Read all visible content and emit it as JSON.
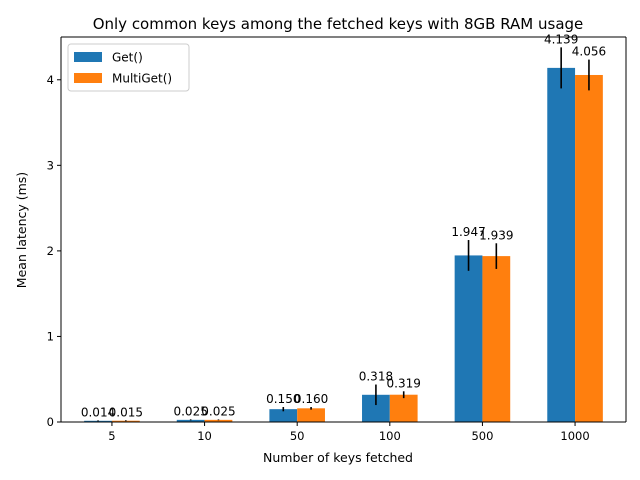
{
  "chart_data": {
    "type": "bar",
    "title": "Only common keys among the fetched keys with 8GB RAM usage",
    "xlabel": "Number of keys fetched",
    "ylabel": "Mean latency (ms)",
    "categories": [
      "5",
      "10",
      "50",
      "100",
      "500",
      "1000"
    ],
    "ylim": [
      0,
      4.5
    ],
    "yticks": [
      0,
      1,
      2,
      3,
      4
    ],
    "grid": false,
    "legend_position": "top-left",
    "series": [
      {
        "name": "Get()",
        "color": "#1f77b4",
        "values": [
          0.014,
          0.025,
          0.15,
          0.318,
          1.947,
          4.139
        ],
        "errors": [
          0.005,
          0.006,
          0.025,
          0.12,
          0.18,
          0.24
        ],
        "value_labels": [
          "0.014",
          "0.025",
          "0.150",
          "0.318",
          "1.947",
          "4.139"
        ]
      },
      {
        "name": "MultiGet()",
        "color": "#ff7f0e",
        "values": [
          0.015,
          0.025,
          0.16,
          0.319,
          1.939,
          4.056
        ],
        "errors": [
          0.005,
          0.005,
          0.015,
          0.04,
          0.15,
          0.18
        ],
        "value_labels": [
          "0.015",
          "0.025",
          "0.160",
          "0.319",
          "1.939",
          "4.056"
        ]
      }
    ]
  }
}
